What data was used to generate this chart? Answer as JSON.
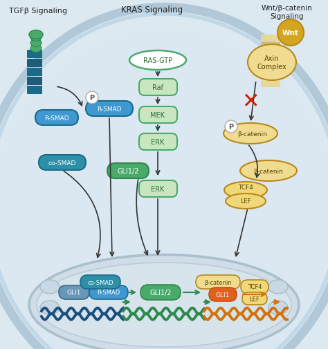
{
  "bg_color": "#dce9f0",
  "labels": {
    "tgfb": "TGFβ Signaling",
    "kras": "KRAS Signaling",
    "wnt_sig": "Wnt/β-catenin\nSignaling",
    "wnt_circle": "Wnt",
    "axin": "Axin\nComplex",
    "ras_gtp": "RAS-GTP",
    "raf": "Raf",
    "mek": "MEK",
    "erk_upper": "ERK",
    "erk_lower": "ERK",
    "rsmad_upper": "R-SMAD",
    "rsmad_free": "R-SMAD",
    "rsmad_lower": "R-SMAD",
    "cosmad_upper": "co-SMAD",
    "cosmad_lower": "co-SMAD",
    "gli12_upper": "GLI1/2",
    "gli12_lower": "GLI1/2",
    "gli1_nucleus": "GLI1",
    "gli1_orange": "GLI1",
    "bcatenin_p": "β-catenin",
    "bcatenin_free": "β-catenin",
    "bcatenin_nucleus": "β-catenin",
    "tcf4_lef_upper": "TCF4\nLEF",
    "tcf4_lower": "TCF4",
    "lef_lower": "LEF",
    "p_label": "P"
  },
  "colors": {
    "membrane_color": "#b0c8d8",
    "membrane_inner": "#c0d8e8",
    "teal_dark": "#1a6b8a",
    "teal_mid": "#2e8fa8",
    "teal_light": "#4ab8c8",
    "green_dark": "#2d8a4e",
    "green_mid": "#4aaa6a",
    "green_box": "#c8e6c0",
    "green_border": "#4aaa6a",
    "gold": "#d4a520",
    "gold_light": "#e8c860",
    "gold_dark": "#b8881a",
    "gold_box": "#f0d878",
    "orange_dark": "#c85010",
    "orange_mid": "#e06020",
    "blue_light": "#4098d0",
    "white": "#ffffff",
    "arrow_color": "#333333",
    "red_x": "#cc2200",
    "dna_blue": "#1a5080",
    "dna_green": "#2d8a4e",
    "dna_orange": "#d4720a",
    "nucleus_face": "#d0dce8",
    "nucleus_edge": "#a8bfcc",
    "nucleus_inner_face": "#d8e4ec",
    "nucleus_inner_edge": "#b8ccd8",
    "bump_face": "#c8d8e4",
    "bump_edge": "#a8bcc8",
    "gli1_blue": "#6898b8",
    "gli1_blue_edge": "#3a6888"
  }
}
